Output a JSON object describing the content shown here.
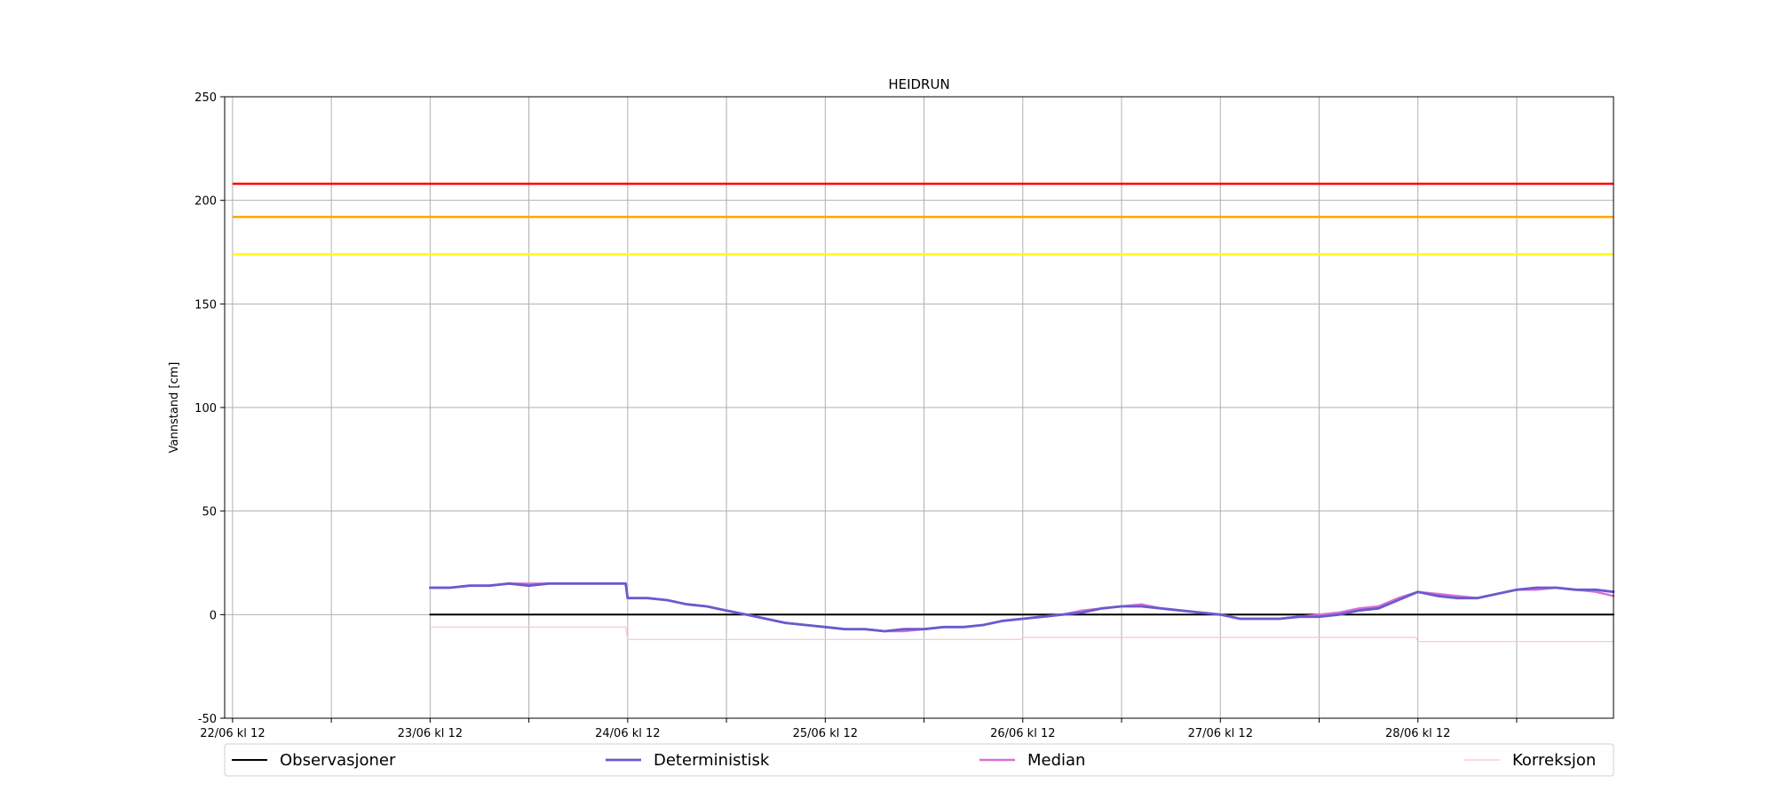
{
  "chart_data": {
    "type": "line",
    "title": "HEIDRUN",
    "xlabel": "",
    "ylabel": "Vannstand [cm]",
    "ylim": [
      -50,
      250
    ],
    "yticks": [
      -50,
      0,
      50,
      100,
      150,
      200,
      250
    ],
    "xlim": [
      -0.04,
      6.99
    ],
    "xticks": [
      0,
      0.5,
      1,
      1.5,
      2,
      2.5,
      3,
      3.5,
      4,
      4.5,
      5,
      5.5,
      6,
      6.5
    ],
    "xtick_labels": [
      "22/06 kl 12",
      "",
      "23/06 kl 12",
      "",
      "24/06 kl 12",
      "",
      "25/06 kl 12",
      "",
      "26/06 kl 12",
      "",
      "27/06 kl 12",
      "",
      "28/06 kl 12",
      ""
    ],
    "grid": true,
    "legend_position": "bottom",
    "threshold_lines": [
      {
        "y": 208,
        "color": "#ff0000"
      },
      {
        "y": 192,
        "color": "#ffa500"
      },
      {
        "y": 174,
        "color": "#ffff00"
      }
    ],
    "series": [
      {
        "name": "Observasjoner",
        "color": "#000000",
        "x": [
          1.0,
          6.99
        ],
        "y": [
          0,
          0
        ]
      },
      {
        "name": "Deterministisk",
        "color": "#6a5acd",
        "x": [
          1.0,
          1.1,
          1.2,
          1.3,
          1.4,
          1.5,
          1.6,
          1.7,
          1.8,
          1.9,
          1.99,
          2.0,
          2.1,
          2.2,
          2.3,
          2.4,
          2.5,
          2.6,
          2.7,
          2.8,
          2.9,
          3.0,
          3.1,
          3.2,
          3.3,
          3.4,
          3.5,
          3.6,
          3.7,
          3.8,
          3.9,
          4.0,
          4.1,
          4.2,
          4.3,
          4.4,
          4.5,
          4.6,
          4.7,
          4.8,
          4.9,
          5.0,
          5.1,
          5.2,
          5.3,
          5.4,
          5.5,
          5.6,
          5.7,
          5.8,
          5.9,
          6.0,
          6.1,
          6.2,
          6.3,
          6.4,
          6.5,
          6.6,
          6.7,
          6.8,
          6.9,
          6.99
        ],
        "y": [
          13,
          13,
          14,
          14,
          15,
          14,
          15,
          15,
          15,
          15,
          15,
          8,
          8,
          7,
          5,
          4,
          2,
          0,
          -2,
          -4,
          -5,
          -6,
          -7,
          -7,
          -8,
          -7,
          -7,
          -6,
          -6,
          -5,
          -3,
          -2,
          -1,
          0,
          1,
          3,
          4,
          4,
          3,
          2,
          1,
          0,
          -2,
          -2,
          -2,
          -1,
          -1,
          0,
          2,
          3,
          7,
          11,
          9,
          8,
          8,
          10,
          12,
          13,
          13,
          12,
          12,
          11
        ]
      },
      {
        "name": "Median",
        "color": "#da70d6",
        "x": [
          1.0,
          1.1,
          1.2,
          1.3,
          1.4,
          1.5,
          1.6,
          1.7,
          1.8,
          1.9,
          1.99,
          2.0,
          2.1,
          2.2,
          2.3,
          2.4,
          2.5,
          2.6,
          2.7,
          2.8,
          2.9,
          3.0,
          3.1,
          3.2,
          3.3,
          3.4,
          3.5,
          3.6,
          3.7,
          3.8,
          3.9,
          4.0,
          4.1,
          4.2,
          4.3,
          4.4,
          4.5,
          4.6,
          4.7,
          4.8,
          4.9,
          5.0,
          5.1,
          5.2,
          5.3,
          5.4,
          5.5,
          5.6,
          5.7,
          5.8,
          5.9,
          6.0,
          6.1,
          6.2,
          6.3,
          6.4,
          6.5,
          6.6,
          6.7,
          6.8,
          6.9,
          6.99
        ],
        "y": [
          13,
          13,
          14,
          14,
          15,
          15,
          15,
          15,
          15,
          15,
          15,
          8,
          8,
          7,
          5,
          4,
          2,
          0,
          -2,
          -4,
          -5,
          -6,
          -7,
          -7,
          -8,
          -8,
          -7,
          -6,
          -6,
          -5,
          -3,
          -2,
          -1,
          0,
          2,
          3,
          4,
          5,
          3,
          2,
          1,
          0,
          -2,
          -2,
          -2,
          -1,
          0,
          1,
          3,
          4,
          8,
          11,
          10,
          9,
          8,
          10,
          12,
          12,
          13,
          12,
          11,
          9
        ]
      },
      {
        "name": "Korreksjon",
        "color": "#ffc0cb",
        "x": [
          1.0,
          1.99,
          2.0,
          2.99,
          3.0,
          3.99,
          4.0,
          4.99,
          5.0,
          5.99,
          6.0,
          6.99
        ],
        "y": [
          -6,
          -6,
          -12,
          -12,
          -12,
          -12,
          -11,
          -11,
          -11,
          -11,
          -13,
          -13
        ]
      }
    ]
  }
}
